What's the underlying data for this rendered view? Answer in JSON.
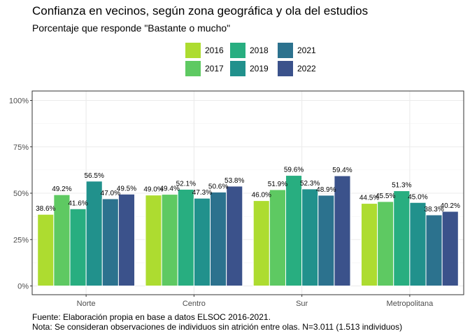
{
  "chart_data": {
    "type": "bar",
    "title": "Confianza en vecinos, según zona geográfica y ola del estudios",
    "subtitle": "Porcentaje que responde \"Bastante o mucho\"",
    "categories": [
      "Norte",
      "Centro",
      "Sur",
      "Metropolitana"
    ],
    "series": [
      {
        "name": "2016",
        "color": "#addc30",
        "values": [
          38.6,
          49.0,
          46.0,
          44.5
        ],
        "labels": [
          "38.6%",
          "49.0%",
          "46.0%",
          "44.5%"
        ]
      },
      {
        "name": "2017",
        "color": "#5ec962",
        "values": [
          49.2,
          49.4,
          51.9,
          45.5
        ],
        "labels": [
          "49.2%",
          "49.4%",
          "51.9%",
          "45.5%"
        ]
      },
      {
        "name": "2018",
        "color": "#28ae80",
        "values": [
          41.6,
          52.1,
          59.6,
          51.3
        ],
        "labels": [
          "41.6%",
          "52.1%",
          "59.6%",
          "51.3%"
        ]
      },
      {
        "name": "2019",
        "color": "#21918c",
        "values": [
          56.5,
          47.3,
          52.3,
          45.0
        ],
        "labels": [
          "56.5%",
          "47.3%",
          "52.3%",
          "45.0%"
        ]
      },
      {
        "name": "2021",
        "color": "#2c728e",
        "values": [
          47.0,
          50.6,
          48.9,
          38.3
        ],
        "labels": [
          "47.0%",
          "50.6%",
          "48.9%",
          "38.3%"
        ]
      },
      {
        "name": "2022",
        "color": "#3b528b",
        "values": [
          49.5,
          53.8,
          59.4,
          40.2
        ],
        "labels": [
          "49.5%",
          "53.8%",
          "59.4%",
          "40.2%"
        ]
      }
    ],
    "ylim": [
      0,
      100
    ],
    "yticks": [
      0,
      25,
      50,
      75,
      100
    ],
    "ytick_labels": [
      "0%",
      "25%",
      "50%",
      "75%",
      "100%"
    ],
    "xlabel": "",
    "ylabel": "",
    "grid": true,
    "legend_position": "top"
  },
  "caption": {
    "line1": "Fuente: Elaboración propia en base a datos ELSOC 2016-2021.",
    "line2": "Nota: Se consideran observaciones de individuos sin atrición entre olas. N=3.011 (1.513 individuos)"
  }
}
